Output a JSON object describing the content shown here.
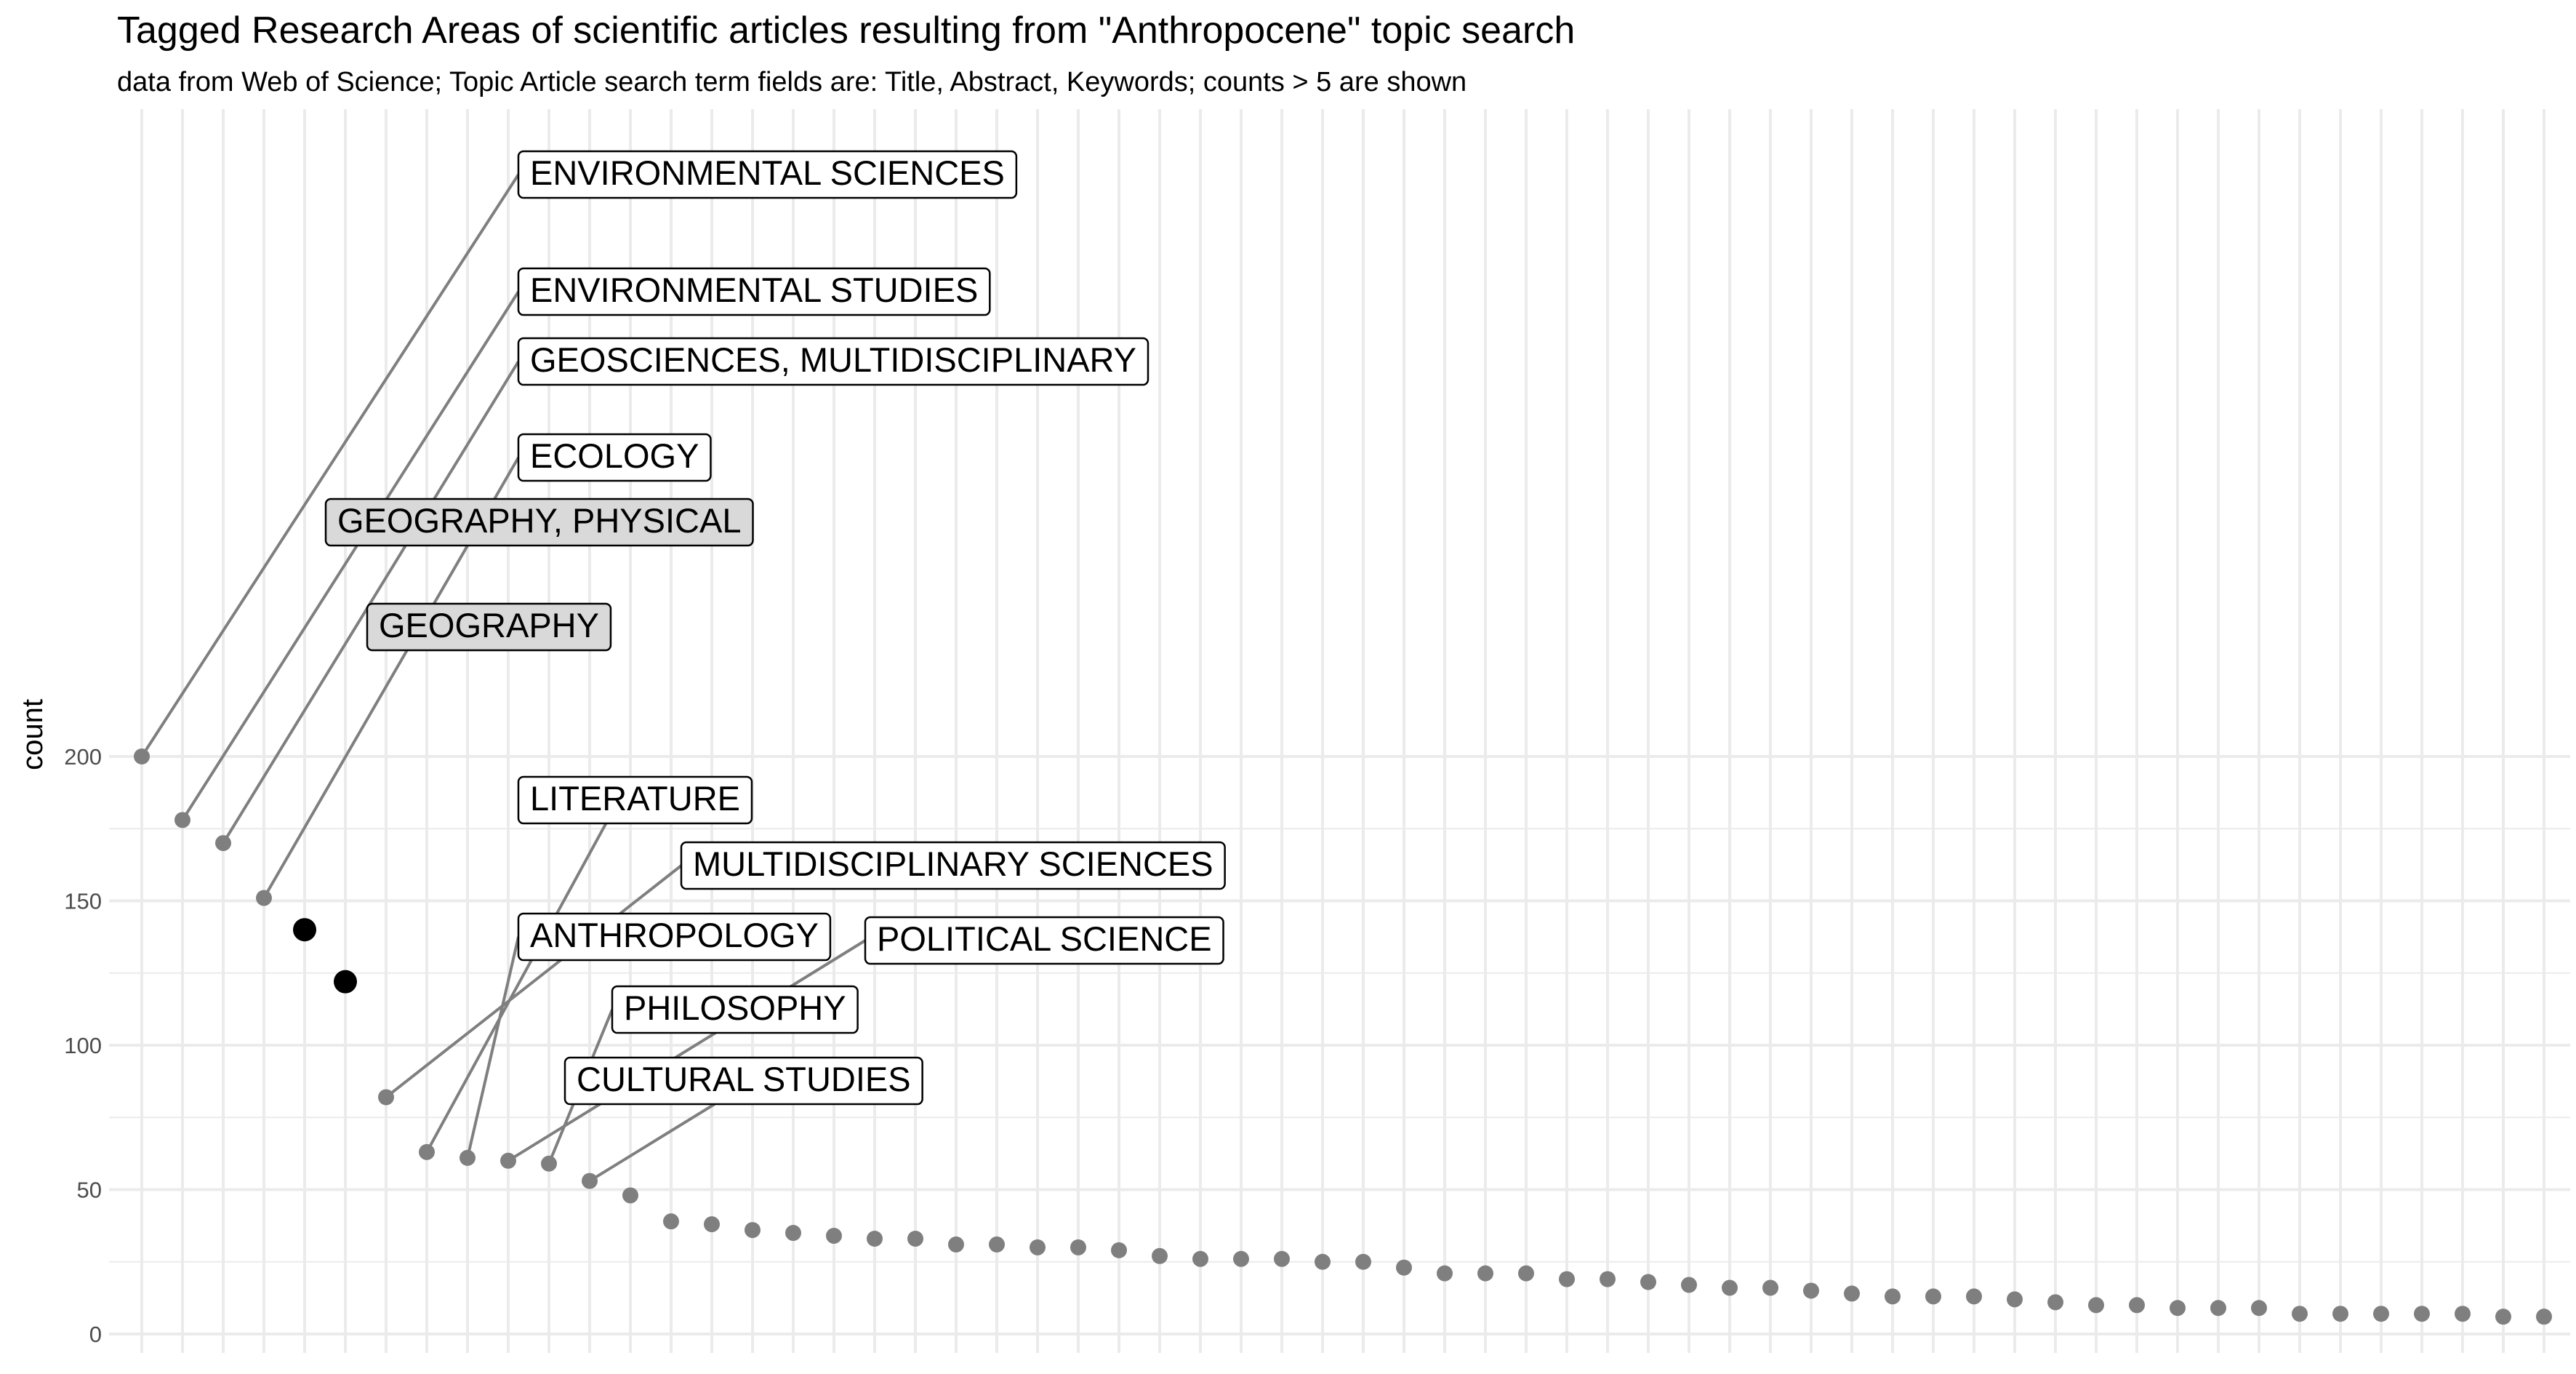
{
  "chart_data": {
    "type": "scatter",
    "title": "Tagged Research Areas of scientific articles resulting from \"Anthropocene\" topic search",
    "subtitle": "data from Web of Science; Topic Article search term fields are: Title, Abstract, Keywords; counts > 5 are shown",
    "xlabel": "",
    "ylabel": "count",
    "ylim": [
      0,
      210
    ],
    "yticks": [
      0,
      50,
      100,
      150,
      200
    ],
    "grid": true,
    "values": [
      200,
      178,
      170,
      151,
      140,
      122,
      82,
      63,
      61,
      60,
      59,
      53,
      48,
      39,
      38,
      36,
      35,
      34,
      33,
      33,
      31,
      31,
      30,
      30,
      29,
      27,
      26,
      26,
      26,
      25,
      25,
      23,
      21,
      21,
      21,
      19,
      19,
      18,
      17,
      16,
      16,
      15,
      14,
      13,
      13,
      13,
      12,
      11,
      10,
      10,
      9,
      9,
      9,
      7,
      7,
      7,
      7,
      7,
      6,
      6
    ],
    "highlighted": [
      4,
      5
    ],
    "colors": {
      "point": "#7f7f7f",
      "highlight": "#000000",
      "highlight_fill": "#d9d9d9",
      "grid": "#ebebeb"
    },
    "labels": [
      {
        "index": 0,
        "text": "ENVIRONMENTAL SCIENCES"
      },
      {
        "index": 1,
        "text": "ENVIRONMENTAL STUDIES"
      },
      {
        "index": 2,
        "text": "GEOSCIENCES, MULTIDISCIPLINARY"
      },
      {
        "index": 3,
        "text": "ECOLOGY"
      },
      {
        "index": 4,
        "text": "GEOGRAPHY, PHYSICAL"
      },
      {
        "index": 5,
        "text": "GEOGRAPHY"
      },
      {
        "index": 6,
        "text": "MULTIDISCIPLINARY SCIENCES"
      },
      {
        "index": 7,
        "text": "LITERATURE"
      },
      {
        "index": 8,
        "text": "ANTHROPOLOGY"
      },
      {
        "index": 9,
        "text": "POLITICAL SCIENCE"
      },
      {
        "index": 10,
        "text": "PHILOSOPHY"
      },
      {
        "index": 11,
        "text": "CULTURAL STUDIES"
      }
    ]
  }
}
